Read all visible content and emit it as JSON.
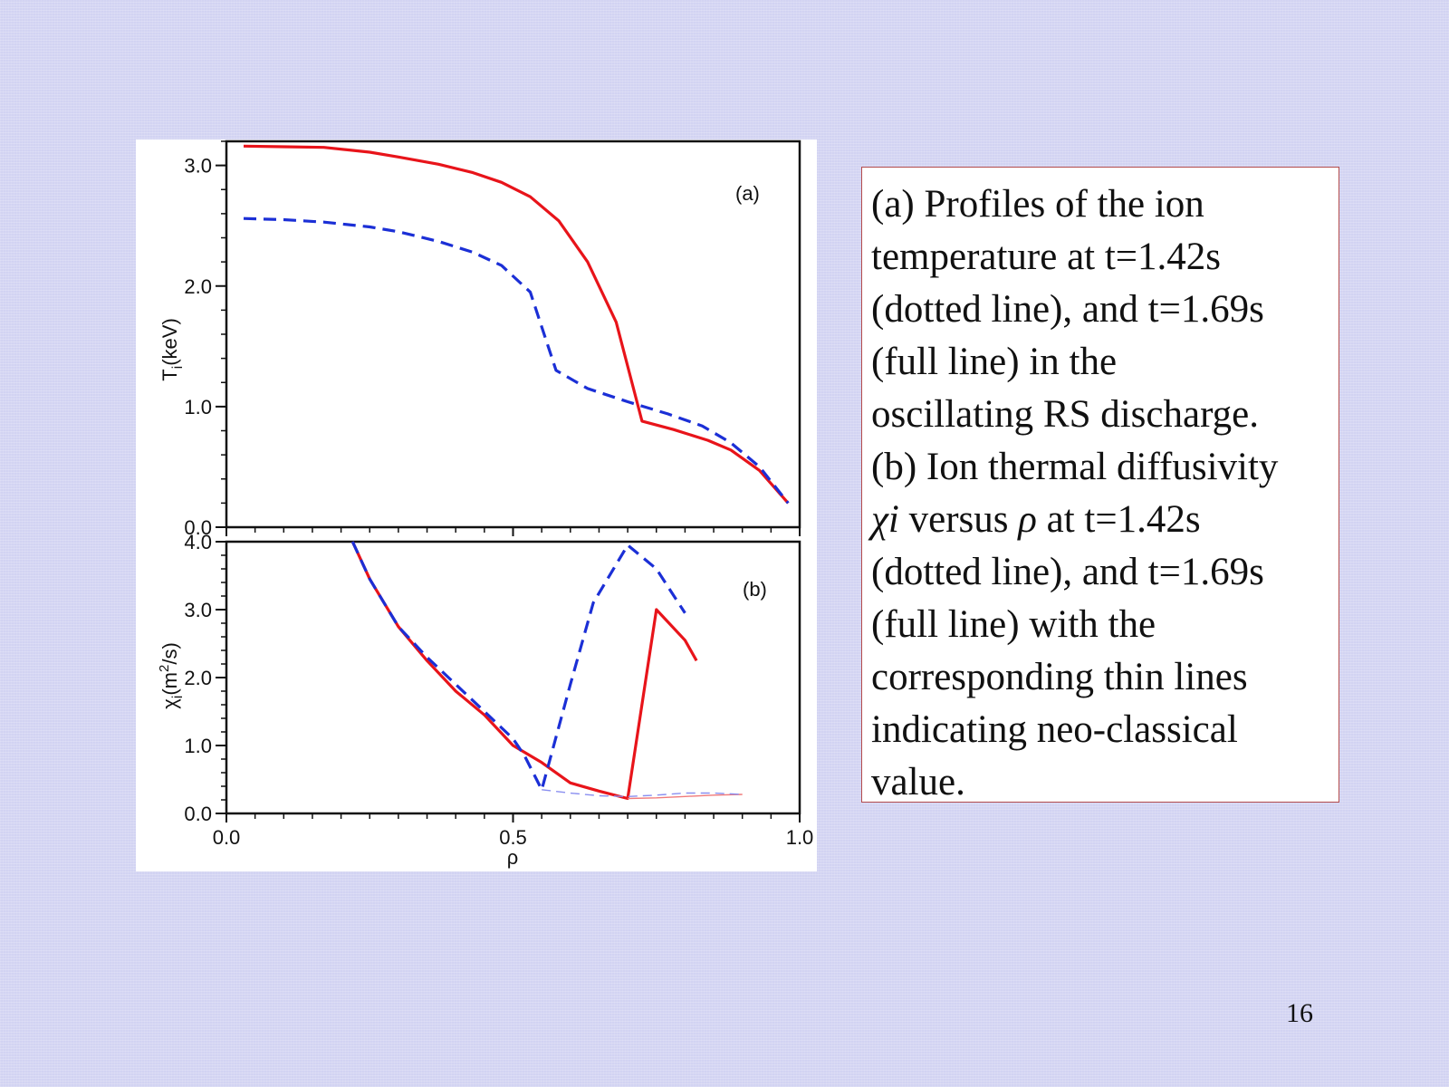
{
  "chart_data": [
    {
      "type": "line",
      "panel_label": "(a)",
      "ylabel_main": "T",
      "ylabel_sub": "i",
      "ylabel_rest": "(keV)",
      "xlim": [
        0,
        1.0
      ],
      "ylim": [
        0,
        3.2
      ],
      "yticks": [
        "0.0",
        "1.0",
        "2.0",
        "3.0"
      ],
      "ytick_values": [
        0,
        1,
        2,
        3
      ],
      "grid": false,
      "series": [
        {
          "style": "solid",
          "color": "#e8141a",
          "points": [
            [
              0.03,
              3.16
            ],
            [
              0.1,
              3.155
            ],
            [
              0.17,
              3.15
            ],
            [
              0.25,
              3.11
            ],
            [
              0.3,
              3.07
            ],
            [
              0.37,
              3.01
            ],
            [
              0.43,
              2.94
            ],
            [
              0.48,
              2.86
            ],
            [
              0.53,
              2.74
            ],
            [
              0.58,
              2.54
            ],
            [
              0.63,
              2.2
            ],
            [
              0.68,
              1.7
            ],
            [
              0.725,
              0.88
            ],
            [
              0.78,
              0.81
            ],
            [
              0.84,
              0.72
            ],
            [
              0.88,
              0.64
            ],
            [
              0.93,
              0.47
            ],
            [
              0.98,
              0.2
            ]
          ]
        },
        {
          "style": "dashed",
          "color": "#1b2fd6",
          "points": [
            [
              0.03,
              2.56
            ],
            [
              0.1,
              2.55
            ],
            [
              0.17,
              2.53
            ],
            [
              0.25,
              2.49
            ],
            [
              0.3,
              2.45
            ],
            [
              0.37,
              2.37
            ],
            [
              0.43,
              2.28
            ],
            [
              0.48,
              2.17
            ],
            [
              0.53,
              1.95
            ],
            [
              0.575,
              1.3
            ],
            [
              0.63,
              1.15
            ],
            [
              0.7,
              1.04
            ],
            [
              0.77,
              0.94
            ],
            [
              0.83,
              0.84
            ],
            [
              0.88,
              0.7
            ],
            [
              0.93,
              0.5
            ],
            [
              0.98,
              0.2
            ]
          ]
        }
      ]
    },
    {
      "type": "line",
      "panel_label": "(b)",
      "ylabel_main": "χ",
      "ylabel_sub": "i",
      "ylabel_rest": "(m",
      "ylabel_sup": "2",
      "ylabel_end": "/s)",
      "xlabel": "ρ",
      "xlim": [
        0,
        1.0
      ],
      "ylim": [
        0,
        4.0
      ],
      "yticks": [
        "0.0",
        "1.0",
        "2.0",
        "3.0",
        "4.0"
      ],
      "ytick_values": [
        0,
        1,
        2,
        3,
        4
      ],
      "xticks": [
        "0.0",
        "0.5",
        "1.0"
      ],
      "xtick_values": [
        0,
        0.5,
        1.0
      ],
      "grid": false,
      "series": [
        {
          "style": "solid",
          "color": "#e8141a",
          "width": 3.2,
          "points": [
            [
              0.22,
              4.0
            ],
            [
              0.25,
              3.45
            ],
            [
              0.3,
              2.75
            ],
            [
              0.35,
              2.25
            ],
            [
              0.4,
              1.8
            ],
            [
              0.45,
              1.45
            ],
            [
              0.5,
              1.0
            ],
            [
              0.55,
              0.75
            ],
            [
              0.6,
              0.45
            ],
            [
              0.65,
              0.33
            ],
            [
              0.7,
              0.22
            ],
            [
              0.75,
              3.0
            ],
            [
              0.8,
              2.55
            ],
            [
              0.82,
              2.25
            ]
          ]
        },
        {
          "style": "dashed",
          "color": "#1b2fd6",
          "width": 3.2,
          "points": [
            [
              0.22,
              4.0
            ],
            [
              0.25,
              3.45
            ],
            [
              0.3,
              2.75
            ],
            [
              0.35,
              2.3
            ],
            [
              0.4,
              1.9
            ],
            [
              0.45,
              1.5
            ],
            [
              0.5,
              1.1
            ],
            [
              0.52,
              0.85
            ],
            [
              0.55,
              0.35
            ],
            [
              0.6,
              1.9
            ],
            [
              0.64,
              3.1
            ],
            [
              0.7,
              3.95
            ],
            [
              0.75,
              3.6
            ],
            [
              0.8,
              2.95
            ]
          ]
        },
        {
          "style": "solid",
          "color": "#f07a7a",
          "width": 1.4,
          "points": [
            [
              0.7,
              0.22
            ],
            [
              0.75,
              0.23
            ],
            [
              0.8,
              0.25
            ],
            [
              0.85,
              0.27
            ],
            [
              0.9,
              0.28
            ]
          ]
        },
        {
          "style": "dashed",
          "color": "#8a8ff0",
          "width": 1.4,
          "points": [
            [
              0.55,
              0.35
            ],
            [
              0.6,
              0.3
            ],
            [
              0.65,
              0.26
            ],
            [
              0.7,
              0.25
            ],
            [
              0.75,
              0.27
            ],
            [
              0.8,
              0.3
            ],
            [
              0.85,
              0.3
            ],
            [
              0.9,
              0.28
            ]
          ]
        }
      ]
    }
  ],
  "caption": {
    "line1": "(a) Profiles of the ion",
    "line2": "temperature at t=1.42s",
    "line3": "(dotted line), and t=1.69s",
    "line4": "(full line) in the",
    "line5": "oscillating RS discharge.",
    "line6": "(b) Ion thermal diffusivity",
    "line7_chi": "χi",
    "line7_mid": " versus ",
    "line7_rho": "ρ",
    "line7_end": " at t=1.42s",
    "line8": "(dotted line), and t=1.69s",
    "line9": "(full line) with the",
    "line10": "corresponding thin lines",
    "line11": "indicating neo-classical",
    "line12": "value."
  },
  "page_number": "16"
}
